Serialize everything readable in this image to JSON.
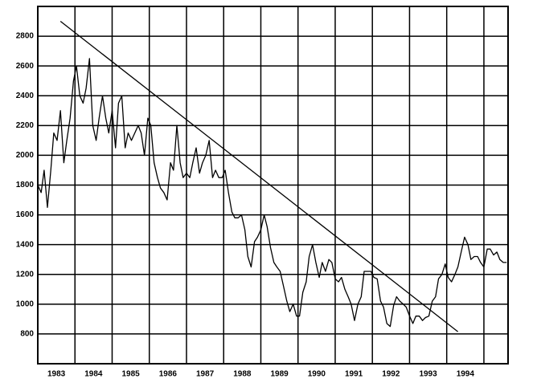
{
  "chart_data": {
    "type": "line",
    "x": [
      1983.0,
      1983.09,
      1983.17,
      1983.26,
      1983.35,
      1983.43,
      1983.52,
      1983.61,
      1983.7,
      1983.78,
      1983.87,
      1983.96,
      1984.04,
      1984.13,
      1984.22,
      1984.3,
      1984.39,
      1984.48,
      1984.57,
      1984.65,
      1984.74,
      1984.83,
      1984.91,
      1985.0,
      1985.09,
      1985.17,
      1985.26,
      1985.35,
      1985.43,
      1985.52,
      1985.61,
      1985.7,
      1985.78,
      1985.87,
      1985.96,
      1986.04,
      1986.13,
      1986.22,
      1986.3,
      1986.39,
      1986.48,
      1986.57,
      1986.65,
      1986.74,
      1986.83,
      1986.91,
      1987.0,
      1987.09,
      1987.17,
      1987.26,
      1987.35,
      1987.43,
      1987.52,
      1987.61,
      1987.7,
      1987.78,
      1987.87,
      1987.96,
      1988.04,
      1988.13,
      1988.22,
      1988.3,
      1988.39,
      1988.48,
      1988.57,
      1988.65,
      1988.74,
      1988.83,
      1988.91,
      1989.0,
      1989.09,
      1989.17,
      1989.26,
      1989.35,
      1989.43,
      1989.52,
      1989.61,
      1989.7,
      1989.78,
      1989.87,
      1989.96,
      1990.04,
      1990.13,
      1990.22,
      1990.3,
      1990.39,
      1990.48,
      1990.57,
      1990.65,
      1990.74,
      1990.83,
      1990.91,
      1991.0,
      1991.09,
      1991.17,
      1991.26,
      1991.35,
      1991.43,
      1991.52,
      1991.61,
      1991.7,
      1991.78,
      1991.87,
      1991.96,
      1992.04,
      1992.13,
      1992.22,
      1992.3,
      1992.39,
      1992.48,
      1992.57,
      1992.65,
      1992.74,
      1992.83,
      1992.91,
      1993.0,
      1993.09,
      1993.17,
      1993.26,
      1993.35,
      1993.43,
      1993.52,
      1993.61,
      1993.7,
      1993.78,
      1993.87,
      1993.96,
      1994.04,
      1994.13,
      1994.22,
      1994.3,
      1994.39,
      1994.48,
      1994.57,
      1994.65,
      1994.74,
      1994.83,
      1994.91,
      1995.0,
      1995.09,
      1995.17,
      1995.26,
      1995.35,
      1995.43,
      1995.52,
      1995.61
    ],
    "values": [
      1800,
      1750,
      1900,
      1650,
      1900,
      2150,
      2100,
      2300,
      1950,
      2100,
      2250,
      2500,
      2600,
      2400,
      2350,
      2450,
      2650,
      2200,
      2100,
      2250,
      2400,
      2250,
      2150,
      2300,
      2050,
      2350,
      2400,
      2050,
      2150,
      2100,
      2150,
      2200,
      2150,
      2000,
      2250,
      2200,
      1950,
      1850,
      1780,
      1750,
      1700,
      1950,
      1900,
      2200,
      1950,
      1850,
      1880,
      1850,
      1950,
      2050,
      1880,
      1950,
      2000,
      2100,
      1850,
      1900,
      1850,
      1850,
      1900,
      1750,
      1620,
      1580,
      1580,
      1600,
      1500,
      1320,
      1250,
      1420,
      1450,
      1500,
      1600,
      1520,
      1380,
      1280,
      1250,
      1220,
      1120,
      1020,
      950,
      1000,
      920,
      920,
      1080,
      1150,
      1320,
      1400,
      1280,
      1180,
      1280,
      1220,
      1300,
      1280,
      1170,
      1150,
      1180,
      1100,
      1050,
      1000,
      890,
      1000,
      1050,
      1220,
      1220,
      1220,
      1180,
      1170,
      1020,
      980,
      870,
      850,
      990,
      1050,
      1020,
      1000,
      980,
      920,
      870,
      920,
      920,
      890,
      910,
      920,
      1020,
      1050,
      1170,
      1200,
      1270,
      1180,
      1150,
      1200,
      1250,
      1350,
      1450,
      1400,
      1300,
      1320,
      1320,
      1280,
      1250,
      1370,
      1370,
      1330,
      1350,
      1300,
      1280,
      1280
    ],
    "color": "#000000",
    "trendline": {
      "x": [
        1983.61,
        1994.3
      ],
      "values": [
        2900,
        815
      ]
    },
    "xlim": [
      1983,
      1995.65
    ],
    "xticks": [
      {
        "value": 1983.5,
        "label": "1983"
      },
      {
        "value": 1984.5,
        "label": "1984"
      },
      {
        "value": 1985.5,
        "label": "1985"
      },
      {
        "value": 1986.5,
        "label": "1986"
      },
      {
        "value": 1987.5,
        "label": "1987"
      },
      {
        "value": 1988.5,
        "label": "1988"
      },
      {
        "value": 1989.5,
        "label": "1989"
      },
      {
        "value": 1990.5,
        "label": "1990"
      },
      {
        "value": 1991.5,
        "label": "1991"
      },
      {
        "value": 1992.5,
        "label": "1992"
      },
      {
        "value": 1993.5,
        "label": "1993"
      },
      {
        "value": 1994.5,
        "label": "1994"
      }
    ],
    "xgrid": [
      1984,
      1985,
      1986,
      1987,
      1988,
      1989,
      1990,
      1991,
      1992,
      1993,
      1994,
      1995
    ],
    "ylim": [
      600,
      3000
    ],
    "yticks": [
      800,
      1000,
      1200,
      1400,
      1600,
      1800,
      2000,
      2200,
      2400,
      2600,
      2800
    ],
    "grid": true
  }
}
